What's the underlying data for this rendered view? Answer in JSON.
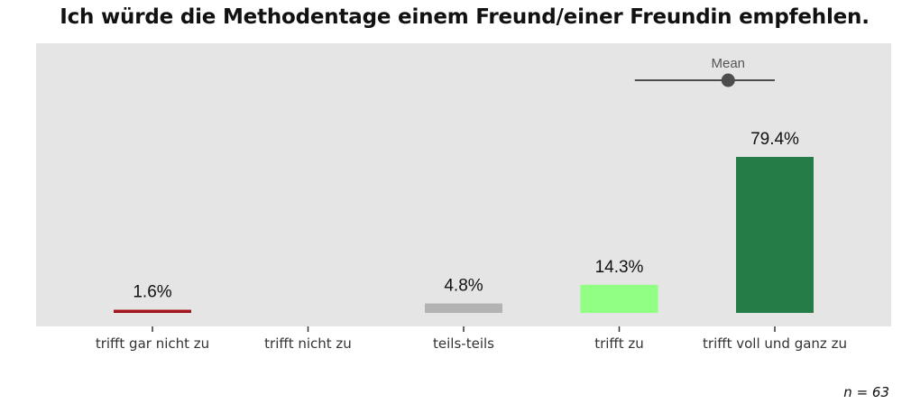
{
  "chart_data": {
    "type": "bar",
    "title": "Ich würde die Methodentage einem Freund/einer Freundin empfehlen.",
    "categories": [
      "trifft gar nicht zu",
      "trifft nicht zu",
      "teils-teils",
      "trifft zu",
      "trifft voll und ganz zu"
    ],
    "values": [
      1.6,
      0,
      4.8,
      14.3,
      79.4
    ],
    "value_labels": [
      "1.6%",
      "",
      "4.8%",
      "14.3%",
      "79.4%"
    ],
    "colors": [
      "#a1151c",
      "#e5e5e5",
      "#b3b3b3",
      "#90ff84",
      "#267c47"
    ],
    "ylim": [
      0,
      100
    ],
    "grid": false,
    "background": "#e5e5e5",
    "mean": {
      "label": "Mean",
      "value": 4.7,
      "interval_low": 4.1,
      "interval_high": 5.0,
      "scale": [
        1,
        5
      ]
    },
    "note": "n = 63"
  }
}
